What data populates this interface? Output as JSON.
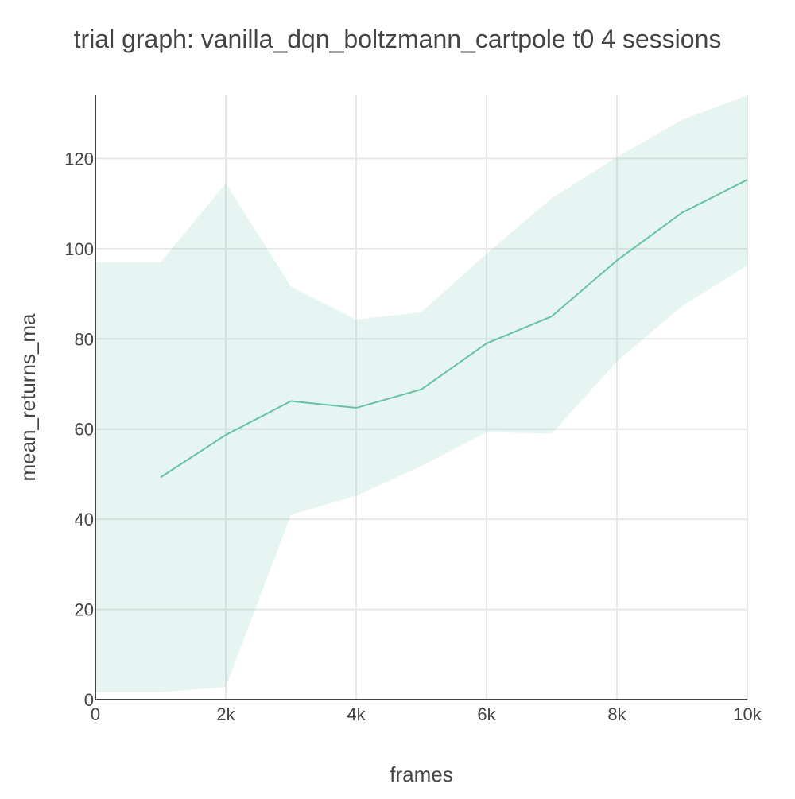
{
  "chart_data": {
    "type": "line",
    "title": "trial graph: vanilla_dqn_boltzmann_cartpole t0 4 sessions",
    "xlabel": "frames",
    "ylabel": "mean_returns_ma",
    "xlim": [
      0,
      10000
    ],
    "ylim": [
      0,
      134
    ],
    "grid": true,
    "x_ticks": [
      0,
      2000,
      4000,
      6000,
      8000,
      10000
    ],
    "x_tick_labels": [
      "0",
      "2k",
      "4k",
      "6k",
      "8k",
      "10k"
    ],
    "y_ticks": [
      0,
      20,
      40,
      60,
      80,
      100,
      120
    ],
    "y_tick_labels": [
      "0",
      "20",
      "40",
      "60",
      "80",
      "100",
      "120"
    ],
    "series": [
      {
        "x": [
          1000,
          2000,
          3000,
          4000,
          5000,
          6000,
          7000,
          8000,
          9000,
          10000
        ],
        "values": [
          49.3,
          58.7,
          66.2,
          64.7,
          68.8,
          79.0,
          85.0,
          97.4,
          108.0,
          115.3
        ],
        "color": "#66c2a5"
      }
    ],
    "band": {
      "x": [
        0,
        1000,
        2000,
        3000,
        4000,
        5000,
        6000,
        7000,
        8000,
        9000,
        10000
      ],
      "upper": [
        97.0,
        97.0,
        114.5,
        91.6,
        84.3,
        85.9,
        98.9,
        111.2,
        120.3,
        128.6,
        134.0
      ],
      "lower": [
        1.6,
        1.6,
        2.8,
        41.0,
        45.2,
        51.8,
        59.3,
        59.0,
        75.0,
        87.3,
        96.3
      ],
      "color": "#66c2a5",
      "opacity": 0.16
    }
  }
}
